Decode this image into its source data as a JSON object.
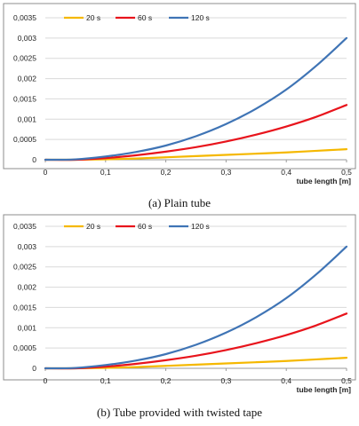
{
  "chart_data": [
    {
      "type": "line",
      "caption": "(a) Plain tube",
      "xlabel": "tube length [m]",
      "ylabel": "",
      "xlim": [
        0,
        0.5
      ],
      "ylim": [
        0,
        0.0035
      ],
      "xticks": [
        "0",
        "0,1",
        "0,2",
        "0,3",
        "0,4",
        "0,5"
      ],
      "yticks": [
        "0",
        "0,0005",
        "0,001",
        "0,0015",
        "0,002",
        "0,0025",
        "0,003",
        "0,0035"
      ],
      "grid": "horizontal",
      "legend": "top",
      "x": [
        0,
        0.05,
        0.1,
        0.15,
        0.2,
        0.25,
        0.3,
        0.35,
        0.4,
        0.45,
        0.5
      ],
      "series": [
        {
          "name": "20 s",
          "color": "#f5b800",
          "values": [
            0,
            0,
            1e-05,
            3e-05,
            6e-05,
            9e-05,
            0.00012,
            0.00015,
            0.00018,
            0.00022,
            0.00026
          ]
        },
        {
          "name": "60 s",
          "color": "#e8141c",
          "values": [
            0,
            0,
            4e-05,
            0.00011,
            0.0002,
            0.00031,
            0.00045,
            0.00062,
            0.00082,
            0.00106,
            0.00135
          ]
        },
        {
          "name": "120 s",
          "color": "#3f74b5",
          "values": [
            0,
            1e-05,
            8e-05,
            0.00019,
            0.00035,
            0.00058,
            0.00088,
            0.00126,
            0.00173,
            0.00232,
            0.003
          ]
        }
      ]
    },
    {
      "type": "line",
      "caption": "(b) Tube provided with twisted tape",
      "xlabel": "tube length [m]",
      "ylabel": "",
      "xlim": [
        0,
        0.5
      ],
      "ylim": [
        0,
        0.0035
      ],
      "xticks": [
        "0",
        "0,1",
        "0,2",
        "0,3",
        "0,4",
        "0,5"
      ],
      "yticks": [
        "0",
        "0,0005",
        "0,001",
        "0,0015",
        "0,002",
        "0,0025",
        "0,003",
        "0,0035"
      ],
      "grid": "horizontal",
      "legend": "top",
      "x": [
        0,
        0.05,
        0.1,
        0.15,
        0.2,
        0.25,
        0.3,
        0.35,
        0.4,
        0.45,
        0.5
      ],
      "series": [
        {
          "name": "20 s",
          "color": "#f5b800",
          "values": [
            0,
            0,
            1e-05,
            3e-05,
            6e-05,
            9e-05,
            0.00012,
            0.00015,
            0.00018,
            0.00022,
            0.00026
          ]
        },
        {
          "name": "60 s",
          "color": "#e8141c",
          "values": [
            0,
            0,
            4e-05,
            0.00011,
            0.0002,
            0.00031,
            0.00045,
            0.00062,
            0.00082,
            0.00106,
            0.00135
          ]
        },
        {
          "name": "120 s",
          "color": "#3f74b5",
          "values": [
            0,
            1e-05,
            8e-05,
            0.00019,
            0.00035,
            0.00058,
            0.00088,
            0.00126,
            0.00173,
            0.00232,
            0.003
          ]
        }
      ]
    }
  ]
}
